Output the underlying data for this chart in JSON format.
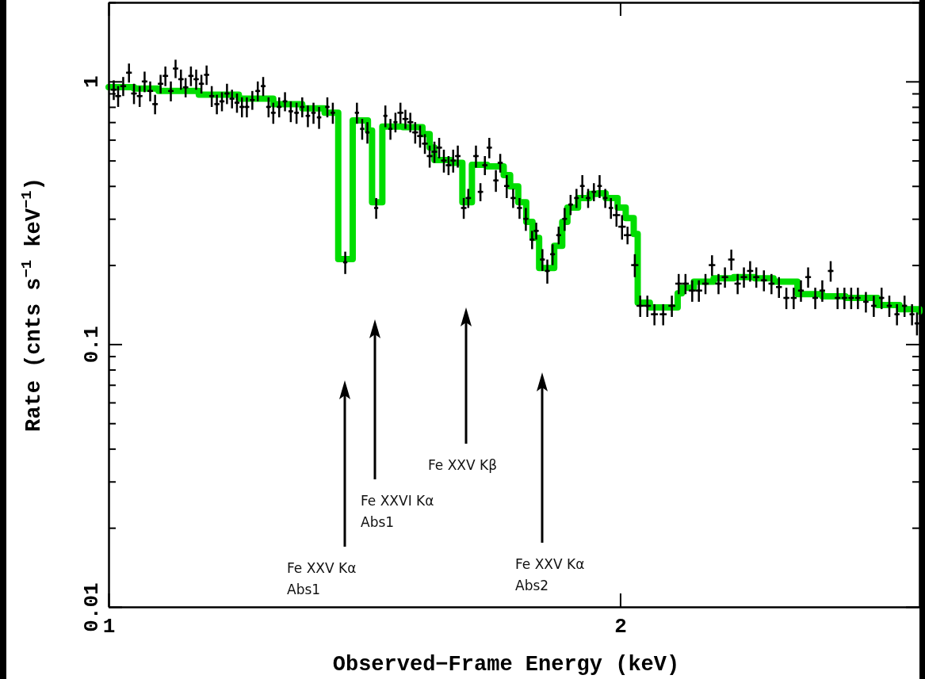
{
  "chart_data": {
    "type": "scatter",
    "xlabel": "Observed−Frame Energy (keV)",
    "ylabel": "Rate (cnts s$^{−1}$ keV$^{−1}$)",
    "log": "xy",
    "xlim": [
      1,
      3
    ],
    "xticks": [
      1,
      2
    ],
    "ylim": [
      0.01,
      2
    ],
    "yticks": [
      0.01,
      {
        "value": 0.02,
        "label": null
      },
      {
        "value": 0.03,
        "label": null
      },
      {
        "value": 0.04,
        "label": null
      },
      {
        "value": 0.05,
        "label": null
      },
      {
        "value": 0.06,
        "label": null
      },
      {
        "value": 0.07,
        "label": null
      },
      {
        "value": 0.08,
        "label": null
      },
      {
        "value": 0.09,
        "label": null
      },
      0.1,
      {
        "value": 0.2,
        "label": null
      },
      {
        "value": 0.3,
        "label": null
      },
      {
        "value": 0.4,
        "label": null
      },
      {
        "value": 0.5,
        "label": null
      },
      {
        "value": 0.6,
        "label": null
      },
      {
        "value": 0.7,
        "label": null
      },
      {
        "value": 0.8,
        "label": null
      },
      {
        "value": 0.9,
        "label": null
      },
      1,
      {
        "value": 2,
        "label": null
      }
    ],
    "series": [
      {
        "type": "step",
        "color": "#00dd00",
        "x": [
          1.0,
          1.035,
          1.07,
          1.13,
          1.193,
          1.25,
          1.3,
          1.34,
          1.365,
          1.392,
          1.421,
          1.429,
          1.449,
          1.49,
          1.53,
          1.545,
          1.555,
          1.59,
          1.615,
          1.636,
          1.67,
          1.708,
          1.723,
          1.742,
          1.761,
          1.776,
          1.792,
          1.829,
          1.849,
          1.862,
          1.889,
          1.919,
          1.94,
          1.961,
          1.993,
          2.015,
          2.037,
          2.048,
          2.082,
          2.162,
          2.174,
          2.21,
          2.27,
          2.333,
          2.4,
          2.462,
          2.543,
          2.63,
          2.714,
          2.834,
          2.92,
          3.0
        ],
        "values": [
          0.952,
          0.94,
          0.92,
          0.89,
          0.86,
          0.82,
          0.79,
          0.76,
          0.211,
          0.711,
          0.65,
          0.347,
          0.673,
          0.67,
          0.63,
          0.56,
          0.502,
          0.49,
          0.347,
          0.482,
          0.475,
          0.44,
          0.399,
          0.347,
          0.292,
          0.254,
          0.195,
          0.237,
          0.292,
          0.331,
          0.36,
          0.373,
          0.375,
          0.36,
          0.331,
          0.302,
          0.263,
          0.144,
          0.138,
          0.156,
          0.164,
          0.173,
          0.178,
          0.18,
          0.178,
          0.173,
          0.155,
          0.152,
          0.15,
          0.141,
          0.136,
          0.133
        ]
      },
      {
        "color": "#000000",
        "x": [
          1.007,
          1.013,
          1.02,
          1.028,
          1.035,
          1.043,
          1.05,
          1.058,
          1.065,
          1.073,
          1.08,
          1.088,
          1.095,
          1.103,
          1.11,
          1.118,
          1.126,
          1.134,
          1.142,
          1.15,
          1.158,
          1.166,
          1.174,
          1.182,
          1.19,
          1.198,
          1.206,
          1.215,
          1.224,
          1.233,
          1.242,
          1.25,
          1.26,
          1.27,
          1.28,
          1.29,
          1.3,
          1.31,
          1.32,
          1.33,
          1.345,
          1.355,
          1.378,
          1.4,
          1.41,
          1.42,
          1.437,
          1.455,
          1.465,
          1.475,
          1.485,
          1.495,
          1.505,
          1.515,
          1.525,
          1.535,
          1.545,
          1.555,
          1.565,
          1.575,
          1.585,
          1.595,
          1.605,
          1.618,
          1.628,
          1.645,
          1.655,
          1.665,
          1.675,
          1.69,
          1.7,
          1.715,
          1.73,
          1.745,
          1.76,
          1.775,
          1.785,
          1.8,
          1.812,
          1.825,
          1.84,
          1.855,
          1.87,
          1.885,
          1.9,
          1.915,
          1.93,
          1.945,
          1.96,
          1.975,
          1.99,
          2.005,
          2.02,
          2.04,
          2.055,
          2.075,
          2.095,
          2.12,
          2.145,
          2.165,
          2.185,
          2.205,
          2.225,
          2.245,
          2.265,
          2.285,
          2.305,
          2.325,
          2.345,
          2.365,
          2.385,
          2.405,
          2.43,
          2.455,
          2.48,
          2.505,
          2.53,
          2.555,
          2.58,
          2.605,
          2.63,
          2.66,
          2.685,
          2.71,
          2.735,
          2.76,
          2.79,
          2.82,
          2.85,
          2.88,
          2.91,
          2.94,
          2.97,
          2.99
        ],
        "values": [
          0.93,
          0.88,
          0.96,
          1.08,
          0.9,
          0.88,
          1.0,
          0.92,
          0.82,
          0.98,
          1.05,
          0.92,
          1.12,
          1.02,
          0.95,
          1.05,
          1.02,
          0.98,
          1.06,
          0.88,
          0.82,
          0.84,
          0.9,
          0.86,
          0.83,
          0.8,
          0.8,
          0.85,
          0.92,
          0.96,
          0.8,
          0.76,
          0.8,
          0.84,
          0.77,
          0.76,
          0.8,
          0.74,
          0.76,
          0.73,
          0.8,
          0.76,
          0.205,
          0.76,
          0.66,
          0.64,
          0.33,
          0.74,
          0.66,
          0.7,
          0.76,
          0.72,
          0.7,
          0.64,
          0.62,
          0.58,
          0.52,
          0.54,
          0.56,
          0.5,
          0.48,
          0.5,
          0.52,
          0.33,
          0.36,
          0.52,
          0.38,
          0.48,
          0.56,
          0.42,
          0.49,
          0.4,
          0.36,
          0.33,
          0.3,
          0.25,
          0.27,
          0.21,
          0.19,
          0.22,
          0.26,
          0.3,
          0.34,
          0.36,
          0.4,
          0.36,
          0.38,
          0.4,
          0.36,
          0.33,
          0.31,
          0.28,
          0.26,
          0.2,
          0.14,
          0.14,
          0.13,
          0.13,
          0.14,
          0.17,
          0.17,
          0.16,
          0.16,
          0.17,
          0.2,
          0.17,
          0.18,
          0.21,
          0.17,
          0.18,
          0.19,
          0.18,
          0.175,
          0.17,
          0.165,
          0.15,
          0.15,
          0.16,
          0.18,
          0.15,
          0.16,
          0.19,
          0.15,
          0.15,
          0.15,
          0.15,
          0.145,
          0.14,
          0.15,
          0.14,
          0.13,
          0.14,
          0.13,
          0.12
        ],
        "errors": [
          0.08,
          0.08,
          0.08,
          0.09,
          0.08,
          0.08,
          0.09,
          0.08,
          0.07,
          0.08,
          0.09,
          0.08,
          0.09,
          0.09,
          0.08,
          0.09,
          0.09,
          0.08,
          0.09,
          0.08,
          0.07,
          0.07,
          0.08,
          0.07,
          0.07,
          0.07,
          0.07,
          0.07,
          0.08,
          0.08,
          0.07,
          0.07,
          0.07,
          0.07,
          0.07,
          0.07,
          0.07,
          0.07,
          0.07,
          0.07,
          0.07,
          0.07,
          0.02,
          0.07,
          0.06,
          0.06,
          0.03,
          0.07,
          0.06,
          0.06,
          0.07,
          0.06,
          0.06,
          0.06,
          0.06,
          0.05,
          0.05,
          0.05,
          0.05,
          0.05,
          0.04,
          0.05,
          0.05,
          0.03,
          0.03,
          0.05,
          0.03,
          0.04,
          0.05,
          0.04,
          0.04,
          0.04,
          0.03,
          0.03,
          0.03,
          0.02,
          0.02,
          0.02,
          0.02,
          0.02,
          0.02,
          0.03,
          0.03,
          0.03,
          0.04,
          0.03,
          0.03,
          0.04,
          0.03,
          0.03,
          0.03,
          0.03,
          0.02,
          0.02,
          0.013,
          0.013,
          0.012,
          0.012,
          0.013,
          0.015,
          0.015,
          0.015,
          0.015,
          0.015,
          0.018,
          0.015,
          0.016,
          0.019,
          0.015,
          0.016,
          0.017,
          0.016,
          0.016,
          0.015,
          0.015,
          0.014,
          0.014,
          0.015,
          0.016,
          0.014,
          0.015,
          0.017,
          0.014,
          0.014,
          0.014,
          0.014,
          0.013,
          0.013,
          0.014,
          0.013,
          0.012,
          0.013,
          0.012,
          0.012
        ],
        "xerrors": [
          0.004,
          0.004,
          0.004,
          0.004,
          0.004,
          0.004,
          0.004,
          0.004,
          0.004,
          0.004,
          0.004,
          0.004,
          0.004,
          0.004,
          0.004,
          0.004,
          0.004,
          0.004,
          0.004,
          0.004,
          0.004,
          0.004,
          0.004,
          0.004,
          0.004,
          0.004,
          0.004,
          0.004,
          0.004,
          0.004,
          0.004,
          0.004,
          0.004,
          0.004,
          0.004,
          0.004,
          0.004,
          0.004,
          0.004,
          0.004,
          0.004,
          0.004,
          0.004,
          0.004,
          0.004,
          0.004,
          0.004,
          0.004,
          0.004,
          0.004,
          0.006,
          0.006,
          0.006,
          0.006,
          0.006,
          0.006,
          0.006,
          0.006,
          0.006,
          0.006,
          0.006,
          0.006,
          0.006,
          0.006,
          0.006,
          0.006,
          0.006,
          0.006,
          0.006,
          0.006,
          0.006,
          0.006,
          0.006,
          0.006,
          0.006,
          0.006,
          0.006,
          0.006,
          0.006,
          0.006,
          0.006,
          0.006,
          0.006,
          0.006,
          0.006,
          0.006,
          0.006,
          0.006,
          0.006,
          0.006,
          0.01,
          0.01,
          0.01,
          0.01,
          0.01,
          0.01,
          0.01,
          0.01,
          0.01,
          0.01,
          0.01,
          0.01,
          0.01,
          0.01,
          0.01,
          0.01,
          0.01,
          0.01,
          0.01,
          0.01,
          0.01,
          0.01,
          0.01,
          0.01,
          0.01,
          0.01,
          0.01,
          0.01,
          0.01,
          0.01,
          0.01,
          0.01,
          0.01,
          0.01,
          0.01,
          0.01,
          0.01,
          0.01,
          0.01,
          0.01,
          0.01,
          0.01,
          0.01,
          0.01
        ]
      }
    ],
    "annotations": [
      "Fe XXV Kα\nAbs1",
      "Fe XXVI Kα\nAbs1",
      "Fe XXV Kβ",
      "Fe XXV Kα\nAbs2"
    ]
  }
}
